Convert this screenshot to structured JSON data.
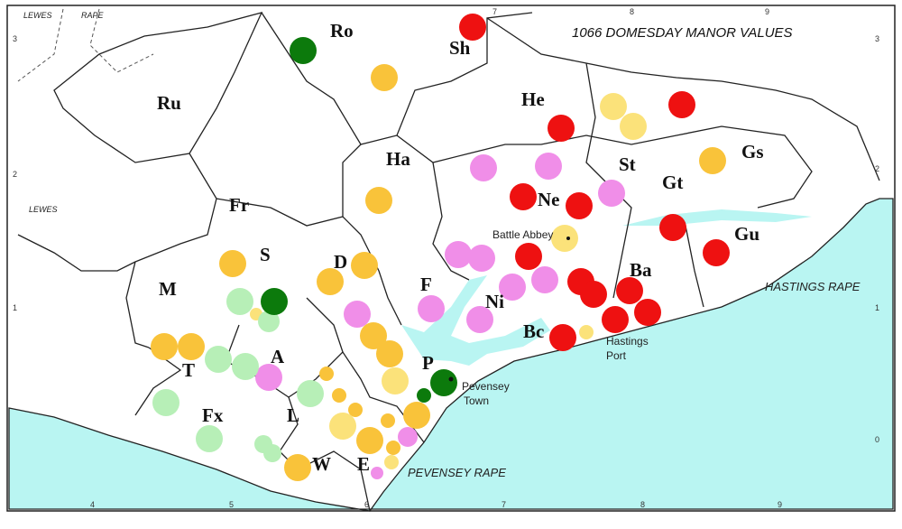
{
  "title": "1066 DOMESDAY MANOR VALUES",
  "areas": [
    "Ro",
    "Sh",
    "Ru",
    "He",
    "Ha",
    "St",
    "Gs",
    "Gt",
    "Ne",
    "Fr",
    "Gu",
    "S",
    "D",
    "Ba",
    "M",
    "F",
    "Ni",
    "Bc",
    "T",
    "A",
    "P",
    "Fx",
    "L",
    "W",
    "E"
  ],
  "places": [
    "LEWES",
    "RAPE",
    "LEWES",
    "Battle Abbey",
    "HASTINGS RAPE",
    "Hastings",
    "Port",
    "Pevensey",
    "Town",
    "PEVENSEY RAPE"
  ],
  "grid": {
    "top": [
      "7",
      "8",
      "9"
    ],
    "left": [
      "3",
      "2",
      "1"
    ],
    "right": [
      "3",
      "2",
      "1",
      "0"
    ],
    "bottom": [
      "4",
      "5",
      "6",
      "7",
      "8",
      "9"
    ]
  }
}
